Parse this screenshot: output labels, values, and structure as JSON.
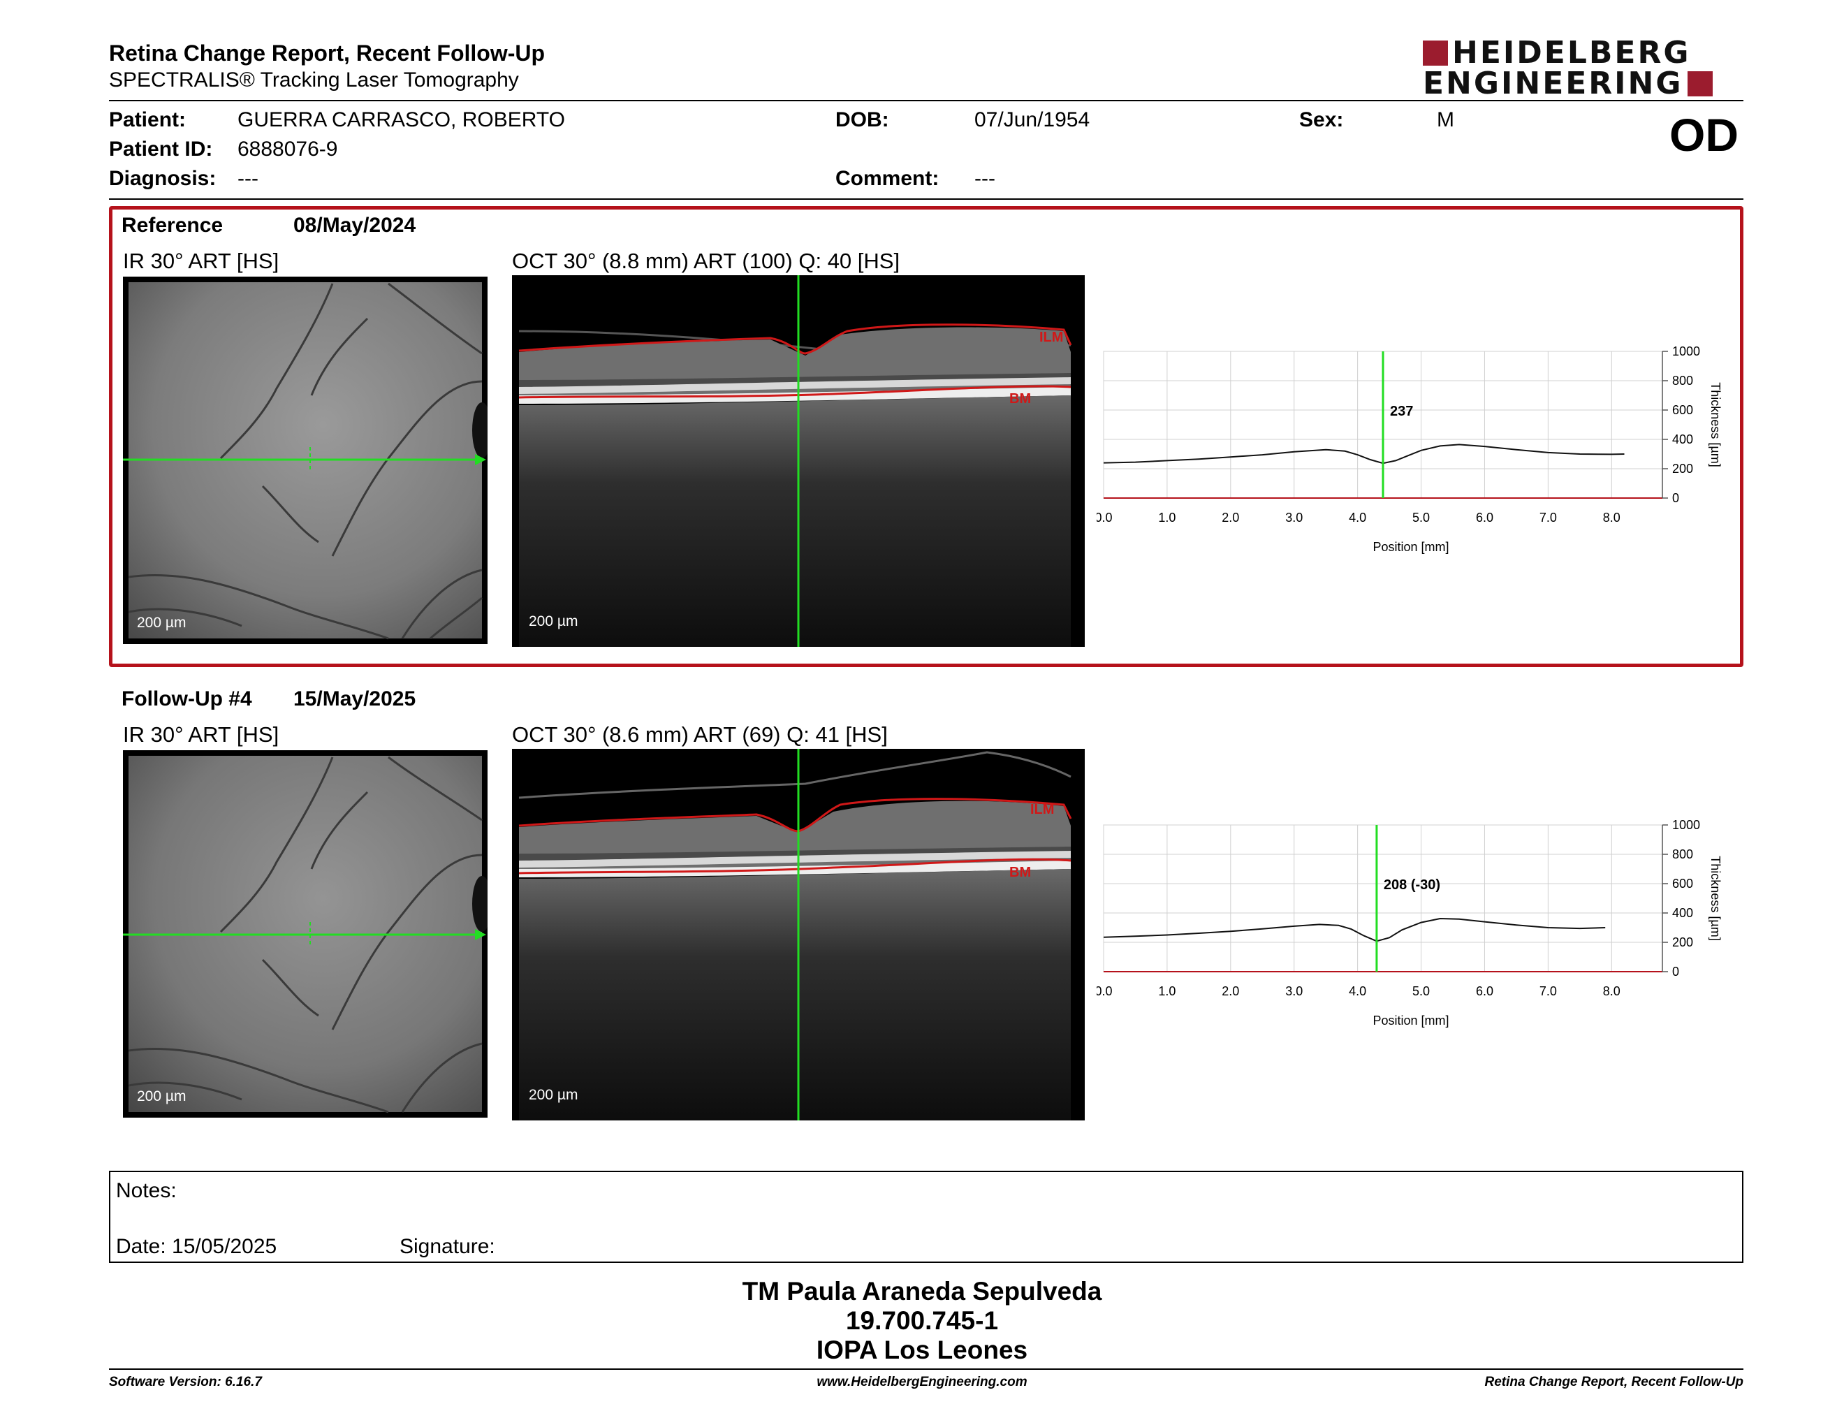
{
  "header": {
    "title": "Retina Change Report, Recent Follow-Up",
    "subtitle": "SPECTRALIS® Tracking Laser Tomography",
    "logo_line1": "HEIDELBERG",
    "logo_line2": "ENGINEERING"
  },
  "patient": {
    "patient_label": "Patient:",
    "patient_name": "GUERRA CARRASCO, ROBERTO",
    "id_label": "Patient ID:",
    "id_value": "6888076-9",
    "diagnosis_label": "Diagnosis:",
    "diagnosis_value": "---",
    "dob_label": "DOB:",
    "dob_value": "07/Jun/1954",
    "comment_label": "Comment:",
    "comment_value": "---",
    "sex_label": "Sex:",
    "sex_value": "M",
    "eye": "OD"
  },
  "reference": {
    "label": "Reference",
    "date": "08/May/2024",
    "ir_title": "IR 30° ART [HS]",
    "oct_title": "OCT 30° (8.8 mm) ART (100) Q: 40 [HS]",
    "scale_label": "200 µm",
    "ilm_label": "ILM",
    "bm_label": "BM"
  },
  "followup": {
    "label": "Follow-Up #4",
    "date": "15/May/2025",
    "ir_title": "IR 30° ART [HS]",
    "oct_title": "OCT 30° (8.6 mm) ART (69) Q: 41 [HS]",
    "scale_label": "200 µm",
    "ilm_label": "ILM",
    "bm_label": "BM"
  },
  "chart_data": [
    {
      "type": "line",
      "xlabel": "Position [mm]",
      "ylabel": "Thickness [µm]",
      "xlim": [
        0,
        8.8
      ],
      "ylim": [
        0,
        1000
      ],
      "x_ticks": [
        "0.0",
        "1.0",
        "2.0",
        "3.0",
        "4.0",
        "5.0",
        "6.0",
        "7.0",
        "8.0"
      ],
      "y_ticks": [
        "0",
        "200",
        "400",
        "600",
        "800",
        "1000"
      ],
      "grid": true,
      "marker_x": 4.4,
      "marker_label": "237",
      "series": [
        {
          "x": [
            0.0,
            0.5,
            1.0,
            1.5,
            2.0,
            2.5,
            3.0,
            3.5,
            3.8,
            4.0,
            4.2,
            4.4,
            4.6,
            4.8,
            5.0,
            5.3,
            5.6,
            6.0,
            6.5,
            7.0,
            7.5,
            8.0,
            8.2
          ],
          "y": [
            240,
            245,
            255,
            265,
            280,
            295,
            315,
            330,
            320,
            295,
            262,
            237,
            255,
            290,
            325,
            355,
            365,
            352,
            330,
            310,
            300,
            298,
            300
          ]
        }
      ]
    },
    {
      "type": "line",
      "xlabel": "Position [mm]",
      "ylabel": "Thickness [µm]",
      "xlim": [
        0,
        8.8
      ],
      "ylim": [
        0,
        1000
      ],
      "x_ticks": [
        "0.0",
        "1.0",
        "2.0",
        "3.0",
        "4.0",
        "5.0",
        "6.0",
        "7.0",
        "8.0"
      ],
      "y_ticks": [
        "0",
        "200",
        "400",
        "600",
        "800",
        "1000"
      ],
      "grid": true,
      "marker_x": 4.3,
      "marker_label": "208 (-30)",
      "series": [
        {
          "x": [
            0.0,
            0.5,
            1.0,
            1.5,
            2.0,
            2.5,
            3.0,
            3.4,
            3.7,
            3.9,
            4.1,
            4.3,
            4.5,
            4.7,
            5.0,
            5.3,
            5.6,
            6.0,
            6.5,
            7.0,
            7.5,
            7.9
          ],
          "y": [
            235,
            242,
            250,
            262,
            275,
            292,
            310,
            322,
            315,
            290,
            245,
            208,
            232,
            285,
            335,
            362,
            358,
            340,
            318,
            300,
            295,
            300
          ]
        }
      ]
    }
  ],
  "notes": {
    "notes_label": "Notes:",
    "date_label": "Date: 15/05/2025",
    "signature_label": "Signature:"
  },
  "signature_block": {
    "name": "TM Paula Araneda Sepulveda",
    "id": "19.700.745-1",
    "org": "IOPA Los Leones"
  },
  "footer": {
    "software": "Software Version: 6.16.7",
    "website": "www.HeidelbergEngineering.com",
    "report": "Retina Change Report, Recent Follow-Up"
  },
  "colors": {
    "accent_red": "#b5121b",
    "logo_red": "#9b1c2e",
    "marker_green": "#22dd22",
    "ilm_red": "#d01818"
  }
}
